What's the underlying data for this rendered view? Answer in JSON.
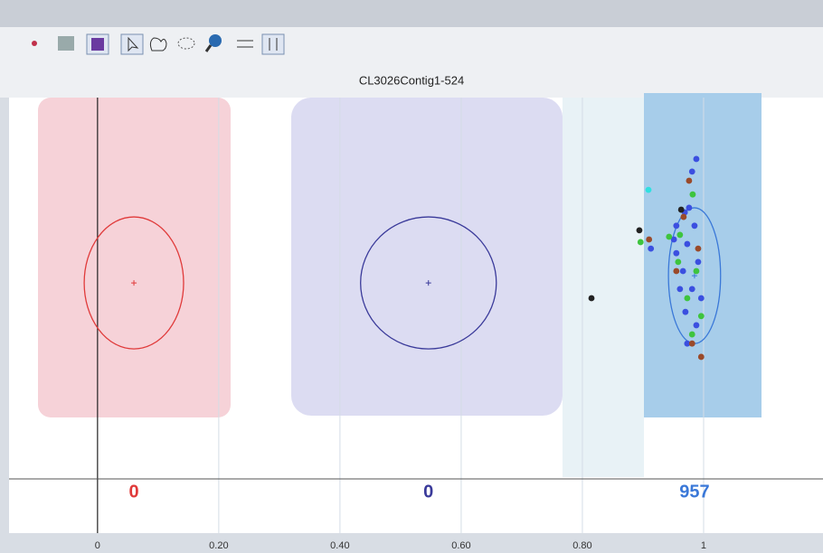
{
  "chart_data": {
    "type": "scatter",
    "title": "CL3026Contig1-524",
    "xlim": [
      -0.146,
      1.197
    ],
    "ylim": [
      0,
      1
    ],
    "xticks": [
      0,
      {
        "value": 0.2,
        "label": "0.20"
      },
      {
        "value": 0.4,
        "label": "0.40"
      },
      {
        "value": 0.6,
        "label": "0.60"
      },
      {
        "value": 0.8,
        "label": "0.80"
      },
      1
    ],
    "clusters": [
      {
        "color": "#e03a3a",
        "count": 0,
        "x": 0.06,
        "y": 0.514,
        "rx": 0.082,
        "ry": 0.173
      },
      {
        "color": "#3a3a9a",
        "count": 0,
        "x": 0.546,
        "y": 0.514,
        "rx": 0.112,
        "ry": 0.173
      },
      {
        "color": "#3a78d8",
        "count": 957,
        "x": 0.985,
        "y": 0.533,
        "rx": 0.043,
        "ry": 0.178
      }
    ],
    "series": [
      {
        "color": "#3b4fe0",
        "x": [
          0.988,
          0.981,
          0.969,
          0.955,
          0.973,
          0.991,
          0.966,
          0.981,
          0.97,
          0.988,
          0.955,
          0.976,
          0.913,
          0.996,
          0.961,
          0.985,
          0.973,
          0.951
        ],
        "y": [
          0.839,
          0.806,
          0.699,
          0.664,
          0.616,
          0.569,
          0.545,
          0.498,
          0.438,
          0.403,
          0.592,
          0.711,
          0.604,
          0.474,
          0.498,
          0.664,
          0.355,
          0.628
        ]
      },
      {
        "color": "#3ec43e",
        "x": [
          0.896,
          0.982,
          0.961,
          0.988,
          0.973,
          0.996,
          0.958,
          0.981,
          0.943
        ],
        "y": [
          0.621,
          0.746,
          0.64,
          0.545,
          0.474,
          0.427,
          0.569,
          0.379,
          0.635
        ]
      },
      {
        "color": "#9a4a2a",
        "x": [
          0.976,
          0.996,
          0.981,
          0.967,
          0.991,
          0.955,
          0.91
        ],
        "y": [
          0.782,
          0.32,
          0.355,
          0.687,
          0.604,
          0.545,
          0.628
        ]
      },
      {
        "color": "#222222",
        "x": [
          0.815,
          0.894,
          0.963
        ],
        "y": [
          0.474,
          0.652,
          0.706
        ]
      },
      {
        "color": "#30e0e0",
        "x": [
          0.909
        ],
        "y": [
          0.758
        ]
      }
    ]
  }
}
